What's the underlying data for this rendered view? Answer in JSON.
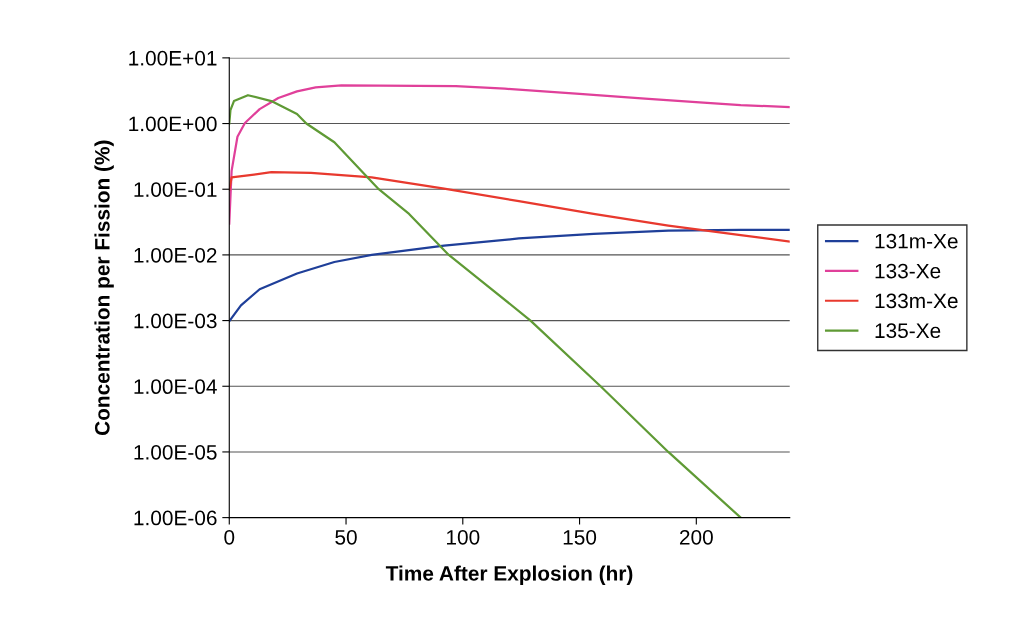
{
  "chart_data": {
    "type": "line",
    "xlabel": "Time After Explosion (hr)",
    "ylabel": "Concentration per Fission (%)",
    "log": "y",
    "xlim": [
      0,
      240
    ],
    "xticks": [
      0,
      50,
      100,
      150,
      200
    ],
    "ylim": [
      1e-06,
      10
    ],
    "yticks": [
      {
        "value": 1e-06,
        "label": "1.00E-06"
      },
      {
        "value": 1e-05,
        "label": "1.00E-05"
      },
      {
        "value": 0.0001,
        "label": "1.00E-04"
      },
      {
        "value": 0.001,
        "label": "1.00E-03"
      },
      {
        "value": 0.01,
        "label": "1.00E-02"
      },
      {
        "value": 0.1,
        "label": "1.00E-01"
      },
      {
        "value": 1,
        "label": "1.00E+00"
      },
      {
        "value": 10,
        "label": "1.00E+01"
      }
    ],
    "grid": "y",
    "legend": "right",
    "marker": "none",
    "line_style": "solid",
    "series": [
      {
        "name": "131m-Xe",
        "color": "#1f3f99",
        "x": [
          0,
          5,
          13,
          29,
          45,
          61,
          92,
          124,
          156,
          188,
          219,
          240
        ],
        "values": [
          0.00098,
          0.0017,
          0.003,
          0.0052,
          0.0078,
          0.01,
          0.0138,
          0.0178,
          0.0209,
          0.0234,
          0.024,
          0.024
        ]
      },
      {
        "name": "133-Xe",
        "color": "#e0409a",
        "x": [
          0,
          1,
          3.5,
          6.7,
          13,
          21,
          29,
          37,
          48,
          97,
          118,
          150,
          178,
          203,
          219,
          240
        ],
        "values": [
          0.03,
          0.19,
          0.63,
          1.02,
          1.66,
          2.45,
          3.09,
          3.55,
          3.8,
          3.72,
          3.39,
          2.82,
          2.4,
          2.09,
          1.91,
          1.78
        ]
      },
      {
        "name": "133m-Xe",
        "color": "#e8392e",
        "x": [
          0,
          1,
          8,
          18,
          35,
          61,
          92,
          124,
          156,
          188,
          219,
          240
        ],
        "values": [
          0.098,
          0.151,
          0.162,
          0.182,
          0.178,
          0.151,
          0.102,
          0.066,
          0.042,
          0.028,
          0.02,
          0.016
        ]
      },
      {
        "name": "135-Xe",
        "color": "#5f9a35",
        "x": [
          0,
          0.5,
          2,
          8,
          18,
          29,
          33,
          45,
          64,
          77,
          94,
          108,
          129,
          159,
          188,
          219
        ],
        "values": [
          1.0,
          1.6,
          2.2,
          2.7,
          2.2,
          1.4,
          1.0,
          0.52,
          0.1,
          0.042,
          0.01,
          0.004,
          0.001,
          0.0001,
          1e-05,
          1e-06
        ]
      }
    ]
  }
}
